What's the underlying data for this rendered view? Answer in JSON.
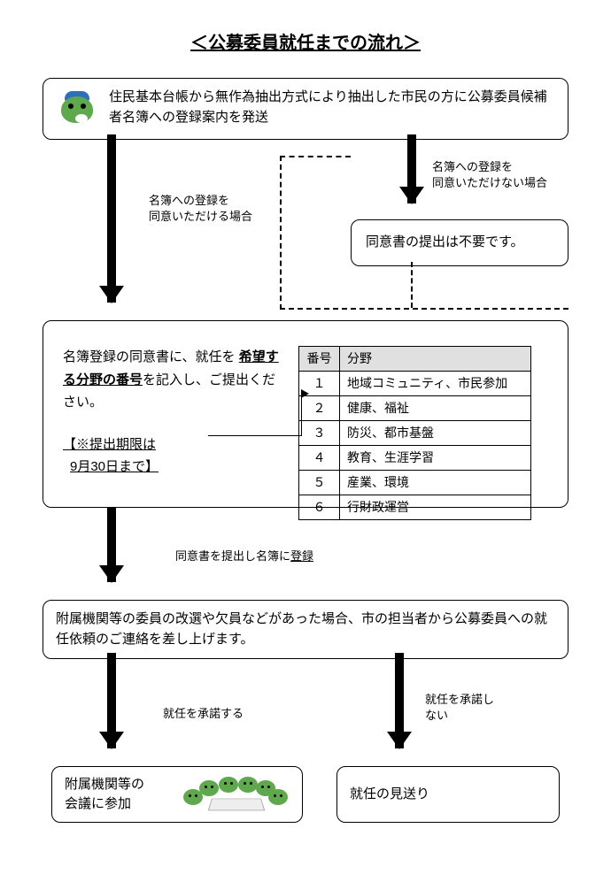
{
  "title": "＜公募委員就任までの流れ＞",
  "box1": "住民基本台帳から無作為抽出方式により抽出した市民の方に公募委員候補者名簿への登録案内を発送",
  "label_agree": "名簿への登録を\n同意いただける場合",
  "label_disagree": "名簿への登録を\n同意いただけない場合",
  "box2": "同意書の提出は不要です。",
  "box3_pre": "名簿登録の同意書に、就任を",
  "box3_bold": "希望する分野の番号",
  "box3_post": "を記入し、ご提出ください。",
  "box3_deadline_pre": "【※提出期限は",
  "box3_deadline_date": "9月30日まで】",
  "table": {
    "headers": [
      "番号",
      "分野"
    ],
    "rows": [
      [
        "１",
        "地域コミュニティ、市民参加"
      ],
      [
        "２",
        "健康、福祉"
      ],
      [
        "３",
        "防災、都市基盤"
      ],
      [
        "４",
        "教育、生涯学習"
      ],
      [
        "５",
        "産業、環境"
      ],
      [
        "６",
        "行財政運営"
      ]
    ]
  },
  "label_submit": "同意書を提出し名簿に登録",
  "box4": "附属機関等の委員の改選や欠員などがあった場合、市の担当者から公募委員への就任依頼のご連絡を差し上げます。",
  "label_accept": "就任を承諾する",
  "label_decline": "就任を承諾し\nない",
  "box5": "附属機関等の\n会議に参加",
  "box6": "就任の見送り",
  "colors": {
    "line": "#000000",
    "bg": "#ffffff",
    "mascot_green": "#5fa84e",
    "mascot_blue": "#2d6fb8",
    "table_header": "#e0e0e0"
  }
}
